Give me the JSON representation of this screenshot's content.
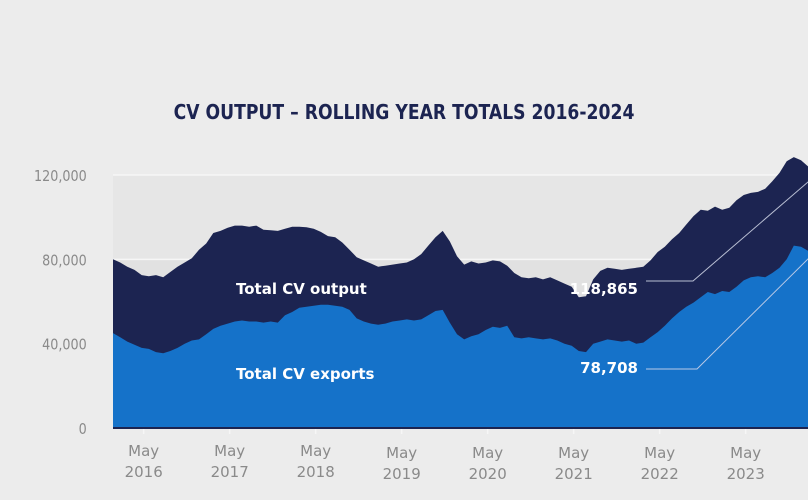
{
  "chart_data": {
    "type": "area",
    "title": "CV OUTPUT – ROLLING YEAR TOTALS 2016-2024",
    "xlabel": "",
    "ylabel": "",
    "ylim": [
      0,
      120000
    ],
    "grid": true,
    "y_ticks": [
      "0",
      "40,000",
      "80,000",
      "120,000"
    ],
    "y_tick_values": [
      0,
      40000,
      80000,
      120000
    ],
    "x_ticks": [
      {
        "line1": "May",
        "line2": "2016",
        "month_index": 4
      },
      {
        "line1": "May",
        "line2": "2017",
        "month_index": 16
      },
      {
        "line1": "May",
        "line2": "2018",
        "month_index": 28
      },
      {
        "line1": "May",
        "line2": "2019",
        "month_index": 40
      },
      {
        "line1": "May",
        "line2": "2020",
        "month_index": 52
      },
      {
        "line1": "May",
        "line2": "2021",
        "month_index": 64
      },
      {
        "line1": "May",
        "line2": "2022",
        "month_index": 76
      },
      {
        "line1": "May",
        "line2": "2023",
        "month_index": 88
      },
      {
        "line1": "May",
        "line2": "2024",
        "month_index": 100
      }
    ],
    "x_start": "Jan 2016",
    "series": [
      {
        "name": "Total CV output",
        "color": "#1c2451",
        "values": [
          80000,
          78500,
          76500,
          75000,
          72500,
          72000,
          72500,
          71500,
          74000,
          76500,
          78500,
          80500,
          84500,
          87500,
          92500,
          93500,
          95000,
          96000,
          96000,
          95500,
          96000,
          94000,
          93800,
          93500,
          94500,
          95500,
          95500,
          95200,
          94500,
          93000,
          91000,
          90500,
          88000,
          84500,
          81000,
          79500,
          78000,
          76500,
          77000,
          77500,
          78000,
          78500,
          80000,
          82500,
          86500,
          90500,
          93500,
          88500,
          81500,
          77500,
          79000,
          78000,
          78500,
          79500,
          79000,
          77000,
          73500,
          71500,
          71000,
          71500,
          70500,
          71500,
          70000,
          68500,
          67000,
          62000,
          62500,
          70500,
          74500,
          76000,
          75500,
          75000,
          75500,
          76000,
          76500,
          79500,
          83500,
          86000,
          89500,
          92500,
          96500,
          100500,
          103500,
          103000,
          105000,
          103500,
          104500,
          108000,
          110500,
          111500,
          112000,
          113500,
          117000,
          121000,
          126500,
          128500,
          127000,
          124000,
          118865
        ],
        "last_label": "118,865"
      },
      {
        "name": "Total CV exports",
        "color": "#1572c9",
        "values": [
          45000,
          43000,
          41000,
          39500,
          38000,
          37500,
          36000,
          35500,
          36500,
          38000,
          40000,
          41500,
          42000,
          44500,
          47000,
          48500,
          49500,
          50500,
          51000,
          50500,
          50500,
          50000,
          50500,
          50000,
          53500,
          55000,
          57000,
          57500,
          58000,
          58500,
          58500,
          58000,
          57500,
          56000,
          52000,
          50500,
          49500,
          49000,
          49500,
          50500,
          51000,
          51500,
          51000,
          51500,
          53500,
          55500,
          56000,
          50000,
          44500,
          42000,
          43500,
          44500,
          46500,
          48000,
          47500,
          48500,
          43000,
          42500,
          43000,
          42500,
          42000,
          42500,
          41500,
          40000,
          39000,
          36500,
          36000,
          40000,
          41000,
          42000,
          41500,
          41000,
          41500,
          40000,
          40500,
          43000,
          45500,
          48500,
          52000,
          55000,
          57500,
          59500,
          62000,
          64500,
          63500,
          65000,
          64500,
          67000,
          70000,
          71500,
          72000,
          71500,
          73500,
          76000,
          80000,
          86500,
          86000,
          84000,
          78708
        ],
        "last_label": "78,708"
      }
    ],
    "series_labels": {
      "output": "Total CV output",
      "exports": "Total CV exports"
    },
    "annotations": {
      "output_value": "118,865",
      "exports_value": "78,708"
    }
  }
}
